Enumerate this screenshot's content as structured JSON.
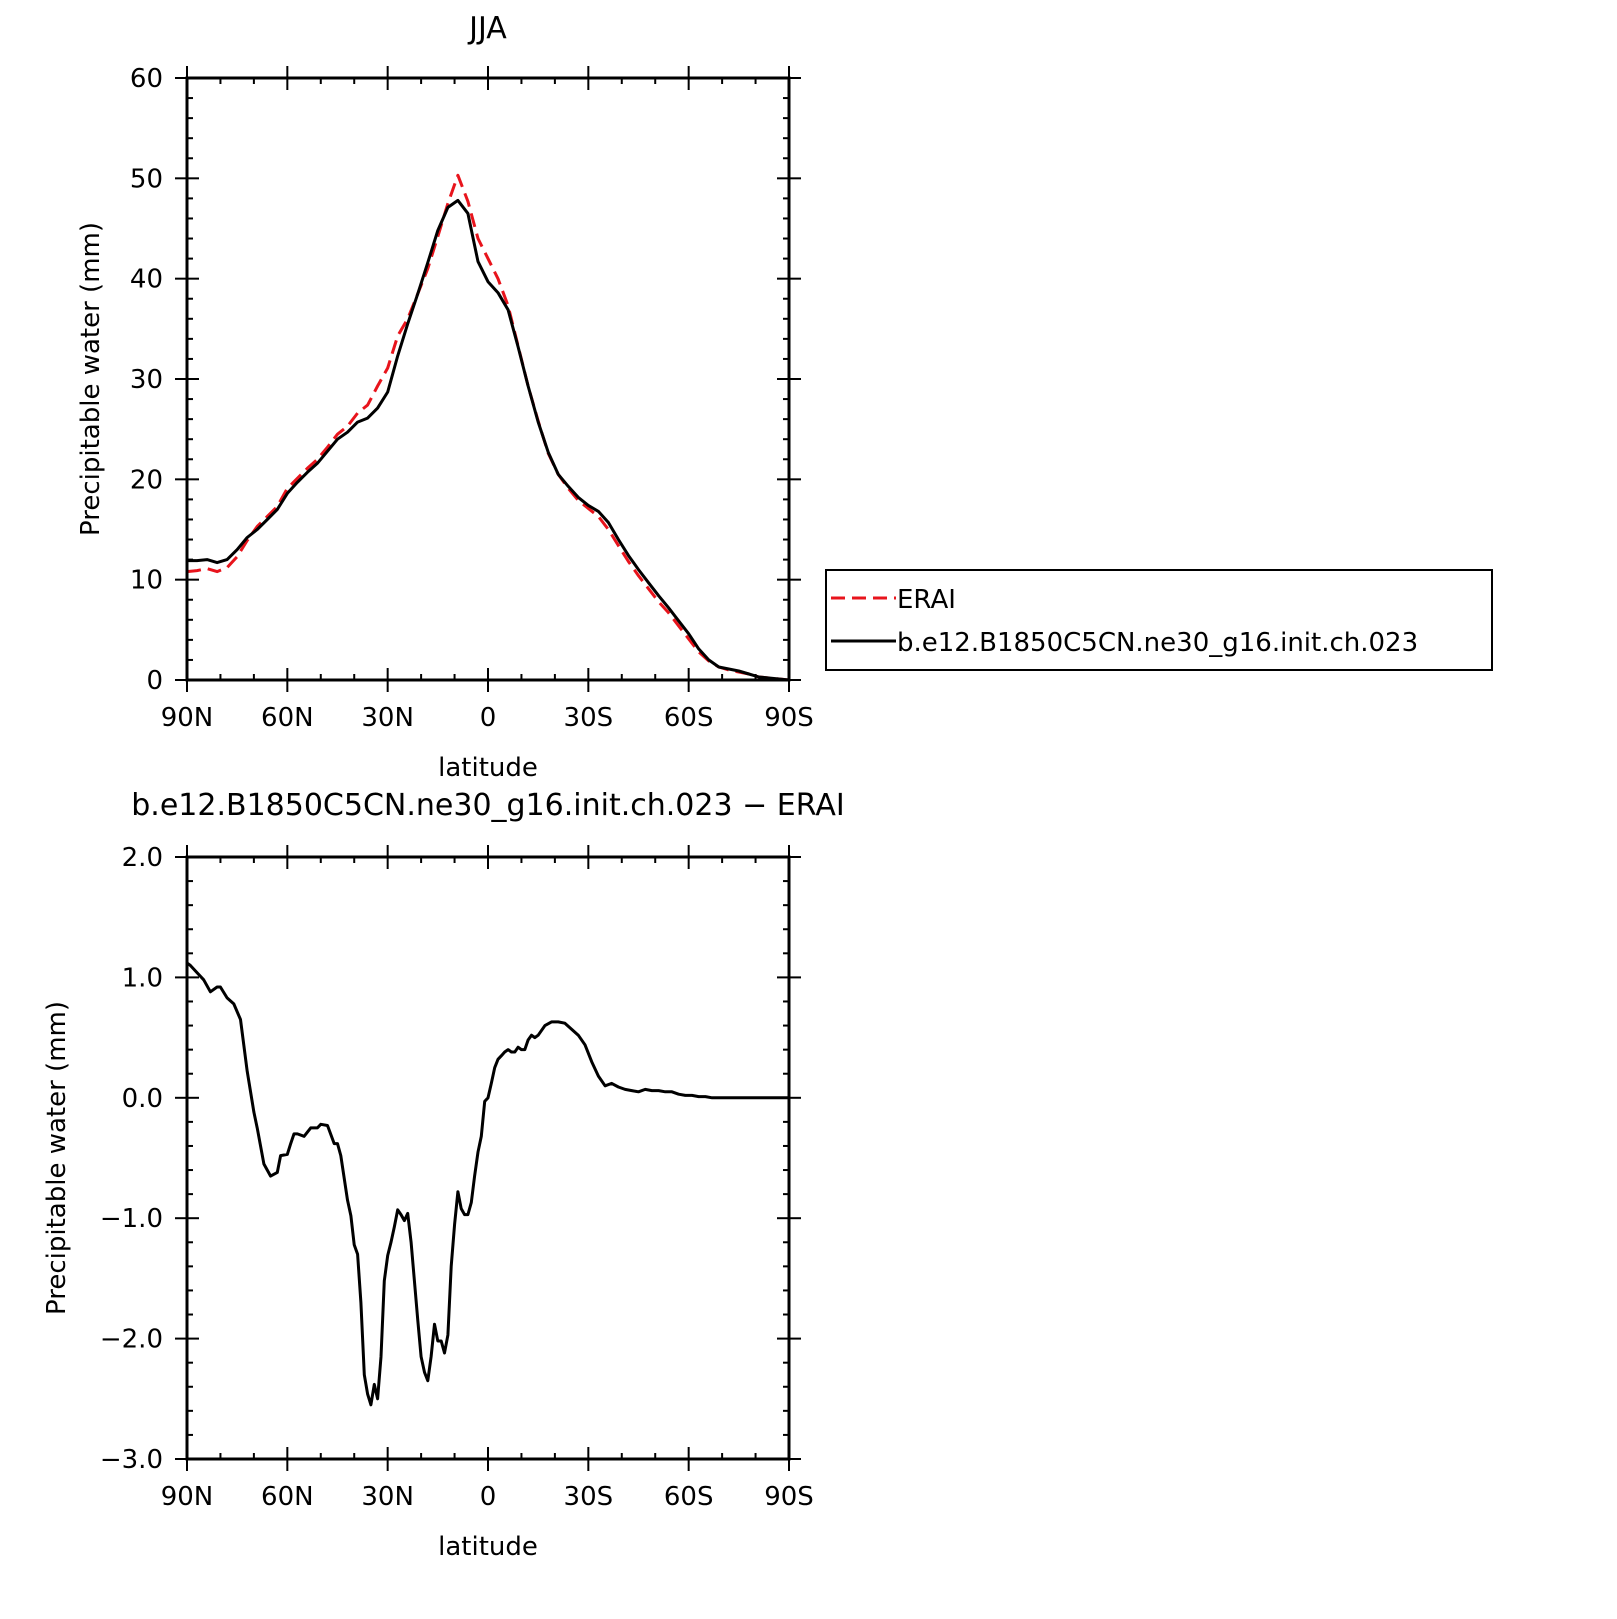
{
  "chart_data": [
    {
      "type": "line",
      "title": "JJA",
      "xlabel": "latitude",
      "ylabel": "Precipitable water (mm)",
      "xlim": [
        90,
        -90
      ],
      "ylim": [
        0,
        60
      ],
      "xticks": [
        90,
        60,
        30,
        0,
        -30,
        -60,
        -90
      ],
      "xtick_labels": [
        "90N",
        "60N",
        "30N",
        "0",
        "30S",
        "60S",
        "90S"
      ],
      "yticks": [
        0,
        10,
        20,
        30,
        40,
        50,
        60
      ],
      "ytick_labels": [
        "0",
        "10",
        "20",
        "30",
        "40",
        "50",
        "60"
      ],
      "legend": "right",
      "series": [
        {
          "name": "ERAI",
          "color": "#e8141c",
          "dash": "dashed",
          "x": [
            90,
            87,
            84,
            81,
            78,
            75,
            72,
            69,
            66,
            63,
            60,
            57,
            54,
            51,
            48,
            45,
            42,
            39,
            36,
            33,
            30,
            27,
            24,
            21,
            18,
            15,
            12,
            9,
            6,
            3,
            0,
            -3,
            -6,
            -9,
            -12,
            -15,
            -18,
            -21,
            -24,
            -27,
            -30,
            -33,
            -36,
            -39,
            -42,
            -45,
            -48,
            -51,
            -54,
            -57,
            -60,
            -63,
            -66,
            -69,
            -72,
            -75,
            -78,
            -81,
            -84,
            -87,
            -90
          ],
          "y": [
            10.8,
            10.9,
            11.1,
            10.8,
            11.2,
            12.3,
            13.9,
            15.3,
            16.3,
            17.3,
            19.1,
            20.1,
            21.1,
            22.0,
            23.2,
            24.5,
            25.3,
            26.6,
            27.4,
            29.3,
            31.1,
            34.3,
            36.0,
            38.5,
            41.0,
            44.2,
            47.5,
            50.3,
            47.7,
            44.0,
            42.0,
            40.0,
            37.3,
            33.3,
            29.3,
            25.8,
            22.6,
            20.5,
            19.1,
            17.9,
            17.1,
            16.3,
            15.0,
            13.4,
            11.8,
            10.4,
            9.1,
            7.8,
            6.7,
            5.4,
            4.1,
            2.8,
            1.9,
            1.3,
            1.0,
            0.8,
            0.6,
            0.3,
            0.2,
            0.1,
            0.0
          ]
        },
        {
          "name": "b.e12.B1850C5CN.ne30_g16.init.ch.023",
          "color": "#000000",
          "dash": "solid",
          "x": [
            90,
            87,
            84,
            81,
            78,
            75,
            72,
            69,
            66,
            63,
            60,
            57,
            54,
            51,
            48,
            45,
            42,
            39,
            36,
            33,
            30,
            27,
            24,
            21,
            18,
            15,
            12,
            9,
            6,
            3,
            0,
            -3,
            -6,
            -9,
            -12,
            -15,
            -18,
            -21,
            -24,
            -27,
            -30,
            -33,
            -36,
            -39,
            -42,
            -45,
            -48,
            -51,
            -54,
            -57,
            -60,
            -63,
            -66,
            -69,
            -72,
            -75,
            -78,
            -81,
            -84,
            -87,
            -90
          ],
          "y": [
            11.9,
            11.9,
            12.0,
            11.7,
            12.0,
            13.0,
            14.2,
            15.0,
            16.0,
            17.0,
            18.6,
            19.7,
            20.7,
            21.6,
            22.8,
            24.0,
            24.7,
            25.7,
            26.1,
            27.1,
            28.7,
            32.3,
            35.5,
            38.5,
            41.6,
            44.8,
            47.1,
            47.8,
            46.5,
            41.7,
            39.7,
            38.6,
            36.9,
            33.2,
            29.3,
            25.7,
            22.7,
            20.5,
            19.3,
            18.2,
            17.4,
            16.8,
            15.7,
            14.0,
            12.4,
            11.0,
            9.7,
            8.4,
            7.2,
            5.9,
            4.6,
            3.1,
            2.0,
            1.3,
            1.1,
            0.9,
            0.6,
            0.3,
            0.2,
            0.1,
            0.0
          ]
        }
      ]
    },
    {
      "type": "line",
      "title": "b.e12.B1850C5CN.ne30_g16.init.ch.023 − ERAI",
      "xlabel": "latitude",
      "ylabel": "Precipitable water (mm)",
      "xlim": [
        90,
        -90
      ],
      "ylim": [
        -3.0,
        2.0
      ],
      "xticks": [
        90,
        60,
        30,
        0,
        -30,
        -60,
        -90
      ],
      "xtick_labels": [
        "90N",
        "60N",
        "30N",
        "0",
        "30S",
        "60S",
        "90S"
      ],
      "yticks": [
        -3.0,
        -2.0,
        -1.0,
        0.0,
        1.0,
        2.0
      ],
      "ytick_labels": [
        "−3.0",
        "−2.0",
        "−1.0",
        "0.0",
        "1.0",
        "2.0"
      ],
      "legend": "none",
      "series": [
        {
          "color": "#000000",
          "dash": "solid",
          "x": [
            90,
            89,
            87,
            85,
            83,
            81,
            80,
            78,
            76,
            74,
            72,
            70,
            69,
            67,
            65,
            63,
            62,
            60,
            59,
            58,
            57,
            55,
            53,
            51,
            50,
            48,
            46,
            45,
            44,
            42,
            41,
            40,
            39,
            38,
            37,
            36,
            35,
            34,
            33,
            32,
            31,
            30,
            29,
            28,
            27,
            26,
            25,
            24,
            23,
            22,
            21,
            20,
            19,
            18,
            17,
            16,
            15,
            14,
            13,
            12,
            11,
            10,
            9,
            8,
            7,
            6,
            5,
            4,
            3,
            2,
            1,
            0,
            -1,
            -2,
            -3,
            -4,
            -5,
            -6,
            -7,
            -8,
            -9,
            -10,
            -11,
            -12,
            -13,
            -14,
            -15,
            -17,
            -19,
            -21,
            -23,
            -25,
            -27,
            -29,
            -31,
            -33,
            -35,
            -37,
            -39,
            -41,
            -43,
            -45,
            -47,
            -49,
            -51,
            -53,
            -55,
            -57,
            -59,
            -61,
            -63,
            -65,
            -67,
            -69,
            -71,
            -73,
            -75,
            -77,
            -79,
            -81,
            -83,
            -85,
            -87,
            -89,
            -90
          ],
          "y": [
            1.12,
            1.1,
            1.04,
            0.98,
            0.88,
            0.92,
            0.92,
            0.83,
            0.78,
            0.65,
            0.22,
            -0.12,
            -0.25,
            -0.55,
            -0.65,
            -0.62,
            -0.48,
            -0.47,
            -0.38,
            -0.3,
            -0.3,
            -0.32,
            -0.25,
            -0.25,
            -0.22,
            -0.23,
            -0.38,
            -0.38,
            -0.48,
            -0.85,
            -0.98,
            -1.22,
            -1.3,
            -1.7,
            -2.3,
            -2.46,
            -2.55,
            -2.38,
            -2.5,
            -2.15,
            -1.52,
            -1.31,
            -1.2,
            -1.07,
            -0.93,
            -0.97,
            -1.02,
            -0.96,
            -1.2,
            -1.52,
            -1.85,
            -2.15,
            -2.28,
            -2.35,
            -2.15,
            -1.88,
            -2.02,
            -2.02,
            -2.12,
            -1.97,
            -1.4,
            -1.05,
            -0.78,
            -0.92,
            -0.97,
            -0.97,
            -0.87,
            -0.65,
            -0.45,
            -0.32,
            -0.03,
            0.0,
            0.12,
            0.25,
            0.32,
            0.35,
            0.38,
            0.4,
            0.38,
            0.38,
            0.42,
            0.4,
            0.4,
            0.48,
            0.52,
            0.5,
            0.52,
            0.6,
            0.63,
            0.63,
            0.62,
            0.57,
            0.52,
            0.44,
            0.3,
            0.18,
            0.1,
            0.12,
            0.09,
            0.07,
            0.06,
            0.05,
            0.07,
            0.06,
            0.06,
            0.05,
            0.05,
            0.03,
            0.02,
            0.02,
            0.01,
            0.01,
            0.0,
            0.0,
            0.0,
            0.0,
            0.0,
            0.0,
            0.0,
            0.0,
            0.0,
            0.0,
            0.0,
            0.0,
            0.0
          ]
        }
      ]
    }
  ]
}
